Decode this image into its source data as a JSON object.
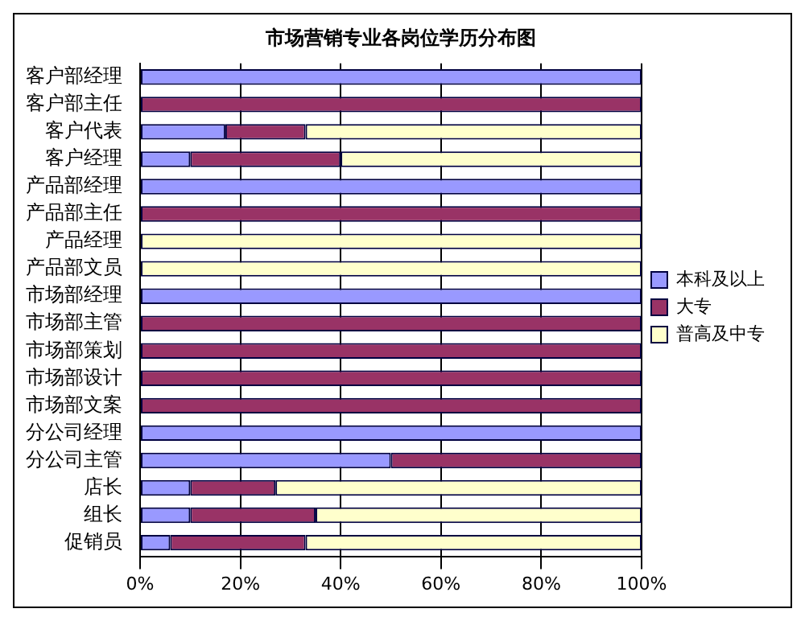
{
  "chart_data": {
    "type": "bar",
    "title": "市场营销专业各岗位学历分布图",
    "orientation": "horizontal",
    "stacked": true,
    "categories": [
      "客户部经理",
      "客户部主任",
      "客户代表",
      "客户经理",
      "产品部经理",
      "产品部主任",
      "产品经理",
      "产品部文员",
      "市场部经理",
      "市场部主管",
      "市场部策划",
      "市场部设计",
      "市场部文案",
      "分公司经理",
      "分公司主管",
      "店长",
      "组长",
      "促销员"
    ],
    "series": [
      {
        "name": "本科及以上",
        "color": "#9999ff",
        "values": [
          100,
          0,
          17,
          10,
          100,
          0,
          0,
          0,
          100,
          0,
          0,
          0,
          0,
          100,
          50,
          10,
          10,
          6
        ]
      },
      {
        "name": "大专",
        "color": "#993366",
        "values": [
          0,
          100,
          16,
          30,
          0,
          100,
          0,
          0,
          0,
          100,
          100,
          100,
          100,
          0,
          50,
          17,
          25,
          27
        ]
      },
      {
        "name": "普高及中专",
        "color": "#ffffcc",
        "values": [
          0,
          0,
          67,
          60,
          0,
          0,
          100,
          100,
          0,
          0,
          0,
          0,
          0,
          0,
          0,
          73,
          65,
          67
        ]
      }
    ],
    "xlim": [
      0,
      100
    ],
    "xticks": [
      {
        "value": 0,
        "label": "0%"
      },
      {
        "value": 20,
        "label": "20%"
      },
      {
        "value": 40,
        "label": "40%"
      },
      {
        "value": 60,
        "label": "60%"
      },
      {
        "value": 80,
        "label": "80%"
      },
      {
        "value": 100,
        "label": "100%"
      }
    ],
    "grid": "x",
    "legend": "right"
  }
}
